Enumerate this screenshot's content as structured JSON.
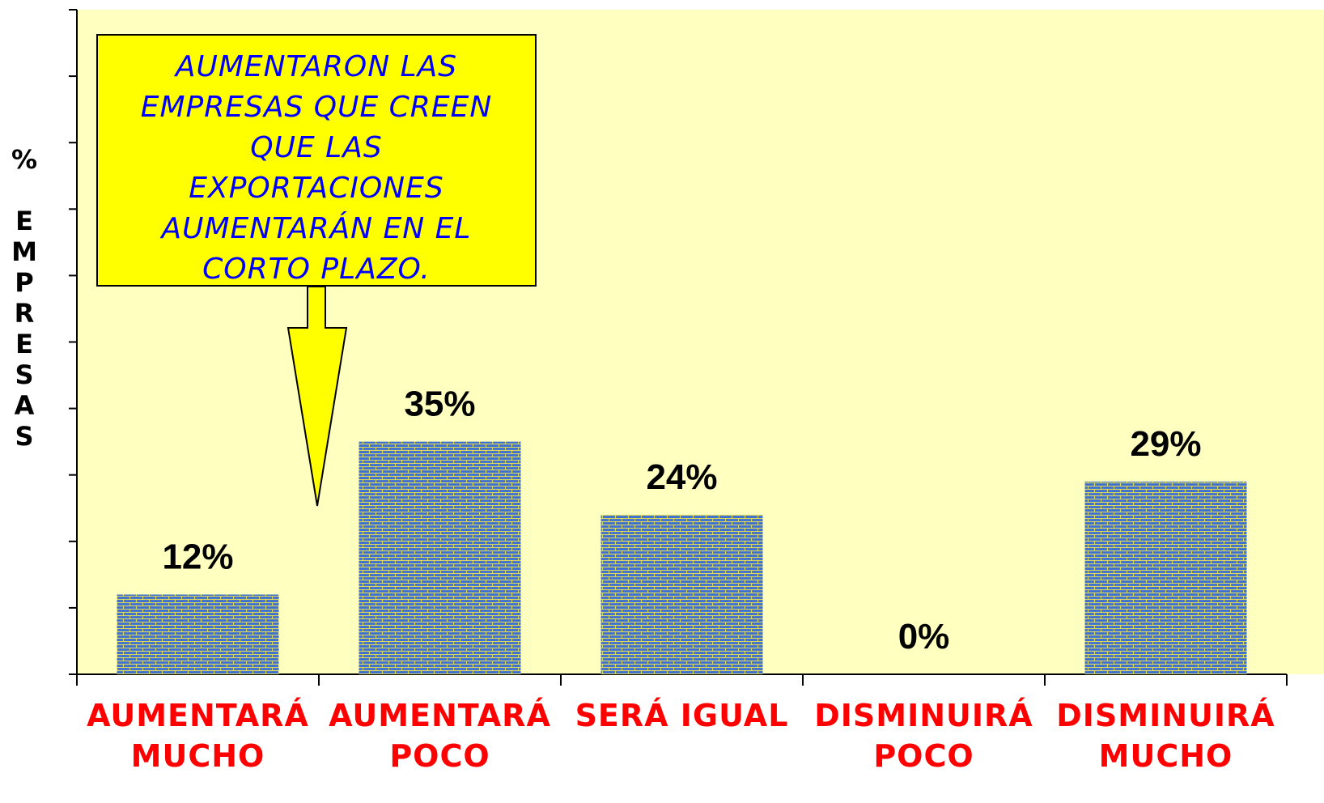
{
  "chart_data": {
    "type": "bar",
    "y_label": "% EMPRESAS",
    "annotation": [
      "AUMENTARON LAS",
      "EMPRESAS QUE CREEN",
      "QUE LAS",
      "EXPORTACIONES",
      "AUMENTARÁN EN EL",
      "CORTO PLAZO."
    ],
    "categories": [
      [
        "AUMENTARÁ",
        "MUCHO"
      ],
      [
        "AUMENTARÁ",
        "POCO"
      ],
      [
        "SERÁ IGUAL"
      ],
      [
        "DISMINUIRÁ",
        "POCO"
      ],
      [
        "DISMINUIRÁ",
        "MUCHO"
      ]
    ],
    "values": [
      12,
      35,
      24,
      0,
      29
    ],
    "value_labels": [
      "12%",
      "35%",
      "24%",
      "0%",
      "29%"
    ],
    "color": "#3f6fd0",
    "ylim": [
      0,
      100
    ],
    "yticks": [
      0,
      10,
      20,
      30,
      40,
      50,
      60,
      70,
      80,
      90,
      100
    ]
  }
}
